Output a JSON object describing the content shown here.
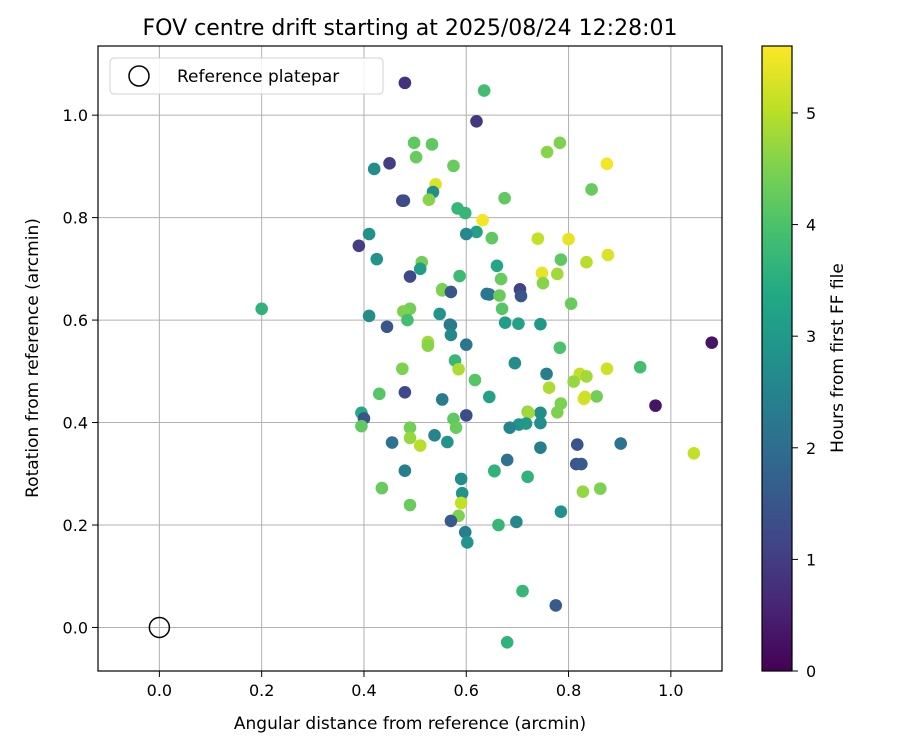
{
  "chart_data": {
    "type": "scatter",
    "title": "FOV centre drift starting at 2025/08/24 12:28:01",
    "xlabel": "Angular distance from reference (arcmin)",
    "ylabel": "Rotation from reference (arcmin)",
    "xlim": [
      -0.12,
      1.1
    ],
    "ylim": [
      -0.085,
      1.135
    ],
    "x_ticks": [
      "0.0",
      "0.2",
      "0.4",
      "0.6",
      "0.8",
      "1.0"
    ],
    "y_ticks": [
      "0.0",
      "0.2",
      "0.4",
      "0.6",
      "0.8",
      "1.0"
    ],
    "grid": true,
    "legend": {
      "placement": "top-left",
      "label": "Reference platepar"
    },
    "reference": {
      "x": 0.0,
      "y": 0.0
    },
    "colorbar": {
      "label": "Hours from first FF file",
      "range": [
        0,
        5.6
      ],
      "ticks": [
        "0",
        "1",
        "2",
        "3",
        "4",
        "5"
      ],
      "colormap": "viridis"
    },
    "points": [
      [
        0.48,
        1.063,
        0.8
      ],
      [
        0.635,
        1.048,
        3.9
      ],
      [
        0.62,
        0.988,
        0.9
      ],
      [
        0.498,
        0.946,
        4.2
      ],
      [
        0.533,
        0.943,
        4.2
      ],
      [
        0.783,
        0.946,
        4.5
      ],
      [
        0.758,
        0.928,
        4.6
      ],
      [
        0.875,
        0.905,
        5.5
      ],
      [
        0.45,
        0.906,
        1.0
      ],
      [
        0.575,
        0.901,
        4.3
      ],
      [
        0.42,
        0.895,
        2.7
      ],
      [
        0.502,
        0.918,
        4.3
      ],
      [
        0.845,
        0.855,
        4.3
      ],
      [
        0.54,
        0.865,
        5.3
      ],
      [
        0.535,
        0.85,
        2.7
      ],
      [
        0.527,
        0.835,
        4.6
      ],
      [
        0.475,
        0.833,
        1.1
      ],
      [
        0.478,
        0.833,
        1.3
      ],
      [
        0.675,
        0.838,
        4.2
      ],
      [
        0.583,
        0.818,
        3.7
      ],
      [
        0.598,
        0.809,
        3.7
      ],
      [
        0.632,
        0.795,
        5.5
      ],
      [
        0.62,
        0.772,
        3.2
      ],
      [
        0.6,
        0.768,
        2.6
      ],
      [
        0.65,
        0.76,
        4.2
      ],
      [
        0.41,
        0.768,
        2.8
      ],
      [
        0.39,
        0.745,
        1.0
      ],
      [
        0.74,
        0.759,
        5.1
      ],
      [
        0.8,
        0.758,
        5.4
      ],
      [
        0.877,
        0.727,
        5.3
      ],
      [
        0.785,
        0.718,
        4.2
      ],
      [
        0.835,
        0.713,
        5.0
      ],
      [
        0.425,
        0.719,
        2.9
      ],
      [
        0.513,
        0.713,
        4.4
      ],
      [
        0.51,
        0.7,
        3.1
      ],
      [
        0.49,
        0.685,
        1.2
      ],
      [
        0.66,
        0.706,
        3.3
      ],
      [
        0.748,
        0.692,
        5.4
      ],
      [
        0.778,
        0.69,
        4.8
      ],
      [
        0.587,
        0.686,
        3.8
      ],
      [
        0.668,
        0.68,
        4.3
      ],
      [
        0.75,
        0.672,
        4.6
      ],
      [
        0.553,
        0.66,
        4.3
      ],
      [
        0.553,
        0.658,
        4.5
      ],
      [
        0.57,
        0.655,
        1.5
      ],
      [
        0.64,
        0.651,
        2.2
      ],
      [
        0.645,
        0.65,
        2.2
      ],
      [
        0.705,
        0.66,
        1.1
      ],
      [
        0.707,
        0.647,
        1.5
      ],
      [
        0.665,
        0.648,
        4.3
      ],
      [
        0.805,
        0.632,
        4.3
      ],
      [
        0.2,
        0.622,
        3.6
      ],
      [
        0.49,
        0.622,
        4.4
      ],
      [
        0.477,
        0.617,
        4.5
      ],
      [
        0.67,
        0.622,
        4.1
      ],
      [
        0.41,
        0.608,
        2.7
      ],
      [
        0.548,
        0.612,
        2.9
      ],
      [
        0.485,
        0.6,
        3.9
      ],
      [
        0.568,
        0.591,
        2.2
      ],
      [
        0.57,
        0.59,
        2.3
      ],
      [
        0.445,
        0.587,
        1.5
      ],
      [
        0.676,
        0.595,
        3.1
      ],
      [
        0.702,
        0.593,
        3.2
      ],
      [
        0.745,
        0.592,
        3.0
      ],
      [
        0.57,
        0.571,
        2.6
      ],
      [
        0.525,
        0.557,
        4.8
      ],
      [
        0.525,
        0.55,
        4.6
      ],
      [
        0.6,
        0.552,
        2.2
      ],
      [
        0.783,
        0.546,
        4.0
      ],
      [
        1.08,
        0.556,
        0.3
      ],
      [
        0.578,
        0.521,
        3.7
      ],
      [
        0.695,
        0.516,
        2.7
      ],
      [
        0.475,
        0.505,
        4.5
      ],
      [
        0.585,
        0.504,
        4.9
      ],
      [
        0.875,
        0.505,
        5.2
      ],
      [
        0.94,
        0.508,
        3.9
      ],
      [
        0.757,
        0.495,
        2.4
      ],
      [
        0.822,
        0.495,
        5.1
      ],
      [
        0.835,
        0.49,
        4.8
      ],
      [
        0.617,
        0.483,
        4.1
      ],
      [
        0.762,
        0.468,
        4.9
      ],
      [
        0.81,
        0.48,
        4.7
      ],
      [
        0.43,
        0.456,
        4.1
      ],
      [
        0.48,
        0.459,
        1.2
      ],
      [
        0.645,
        0.45,
        3.2
      ],
      [
        0.855,
        0.451,
        4.4
      ],
      [
        0.553,
        0.445,
        2.3
      ],
      [
        0.83,
        0.446,
        5.3
      ],
      [
        0.832,
        0.45,
        5.2
      ],
      [
        0.785,
        0.437,
        4.5
      ],
      [
        0.745,
        0.419,
        2.7
      ],
      [
        0.72,
        0.421,
        4.6
      ],
      [
        0.722,
        0.419,
        4.8
      ],
      [
        0.778,
        0.42,
        4.5
      ],
      [
        0.395,
        0.419,
        3.4
      ],
      [
        0.4,
        0.408,
        1.5
      ],
      [
        0.6,
        0.414,
        1.3
      ],
      [
        0.575,
        0.407,
        4.2
      ],
      [
        0.703,
        0.396,
        2.8
      ],
      [
        0.717,
        0.398,
        3.0
      ],
      [
        0.745,
        0.399,
        2.7
      ],
      [
        0.395,
        0.393,
        4.2
      ],
      [
        0.49,
        0.39,
        4.4
      ],
      [
        0.58,
        0.39,
        4.3
      ],
      [
        0.685,
        0.39,
        2.5
      ],
      [
        0.538,
        0.375,
        2.5
      ],
      [
        0.49,
        0.37,
        4.7
      ],
      [
        0.51,
        0.355,
        5.0
      ],
      [
        0.455,
        0.361,
        2.1
      ],
      [
        0.563,
        0.362,
        2.9
      ],
      [
        0.745,
        0.351,
        2.4
      ],
      [
        0.817,
        0.357,
        1.5
      ],
      [
        0.902,
        0.359,
        2.1
      ],
      [
        0.68,
        0.327,
        2.1
      ],
      [
        0.655,
        0.305,
        3.5
      ],
      [
        0.655,
        0.306,
        3.6
      ],
      [
        0.815,
        0.319,
        1.5
      ],
      [
        0.825,
        0.319,
        1.6
      ],
      [
        1.045,
        0.34,
        5.1
      ],
      [
        0.48,
        0.306,
        2.4
      ],
      [
        0.59,
        0.29,
        2.7
      ],
      [
        0.72,
        0.294,
        3.6
      ],
      [
        0.435,
        0.272,
        4.3
      ],
      [
        0.828,
        0.265,
        4.7
      ],
      [
        0.862,
        0.271,
        4.5
      ],
      [
        0.592,
        0.262,
        2.9
      ],
      [
        0.49,
        0.239,
        4.3
      ],
      [
        0.59,
        0.243,
        5.1
      ],
      [
        0.585,
        0.218,
        4.5
      ],
      [
        0.57,
        0.208,
        1.6
      ],
      [
        0.663,
        0.2,
        3.7
      ],
      [
        0.698,
        0.206,
        2.6
      ],
      [
        0.785,
        0.226,
        2.8
      ],
      [
        0.598,
        0.186,
        2.4
      ],
      [
        0.602,
        0.166,
        2.9
      ],
      [
        0.71,
        0.071,
        3.7
      ],
      [
        0.775,
        0.043,
        1.6
      ],
      [
        0.68,
        -0.029,
        3.6
      ],
      [
        0.97,
        0.433,
        0.3
      ]
    ]
  }
}
